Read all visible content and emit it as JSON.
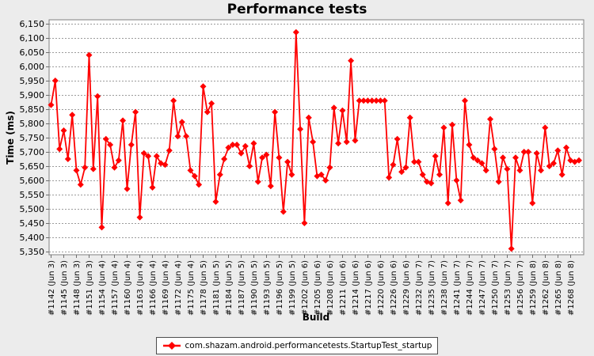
{
  "title": "Performance tests",
  "colors": {
    "page_background": "#ececec",
    "plot_background": "#ffffff",
    "plot_border": "#7f7f7f",
    "gridline": "#9b9b9b",
    "tick": "#6e6e6e",
    "text": "#000000",
    "series_line": "#ff0000"
  },
  "legend": {
    "series_label": "com.shazam.android.performancetests.StartupTest_startup"
  },
  "chart_data": {
    "type": "line",
    "title": "Performance tests",
    "xlabel": "Build",
    "ylabel": "Time (ms)",
    "ylim": [
      5350,
      6150
    ],
    "y_tick_step": 50,
    "grid": "horizontal-dashed",
    "legend_position": "bottom",
    "marker": "diamond",
    "y_tick_labels": [
      "6,150",
      "6,100",
      "6,050",
      "6,000",
      "5,950",
      "5,900",
      "5,850",
      "5,800",
      "5,750",
      "5,700",
      "5,650",
      "5,600",
      "5,550",
      "5,500",
      "5,450",
      "5,400",
      "5,350"
    ],
    "x_tick_labels": [
      "#1142 (Jun 3)",
      "#1145 (Jun 3)",
      "#1148 (Jun 3)",
      "#1151 (Jun 3)",
      "#1154 (Jun 4)",
      "#1157 (Jun 4)",
      "#1160 (Jun 4)",
      "#1163 (Jun 4)",
      "#1166 (Jun 4)",
      "#1169 (Jun 4)",
      "#1172 (Jun 4)",
      "#1175 (Jun 4)",
      "#1178 (Jun 5)",
      "#1181 (Jun 5)",
      "#1184 (Jun 5)",
      "#1187 (Jun 5)",
      "#1190 (Jun 5)",
      "#1193 (Jun 5)",
      "#1196 (Jun 5)",
      "#1199 (Jun 5)",
      "#1202 (Jun 6)",
      "#1205 (Jun 6)",
      "#1208 (Jun 6)",
      "#1211 (Jun 6)",
      "#1214 (Jun 6)",
      "#1217 (Jun 6)",
      "#1220 (Jun 6)",
      "#1226 (Jun 6)",
      "#1229 (Jun 6)",
      "#1232 (Jun 7)",
      "#1235 (Jun 7)",
      "#1238 (Jun 7)",
      "#1241 (Jun 7)",
      "#1244 (Jun 7)",
      "#1247 (Jun 7)",
      "#1250 (Jun 7)",
      "#1253 (Jun 7)",
      "#1256 (Jun 7)",
      "#1259 (Jun 8)",
      "#1262 (Jun 8)",
      "#1265 (Jun 8)",
      "#1268 (Jun 8)"
    ],
    "label_every": 3,
    "series": [
      {
        "name": "com.shazam.android.performancetests.StartupTest_startup",
        "color": "#ff0000",
        "values": [
          5865,
          5950,
          5710,
          5775,
          5675,
          5830,
          5635,
          5585,
          5645,
          6040,
          5640,
          5895,
          5435,
          5745,
          5725,
          5645,
          5670,
          5810,
          5570,
          5725,
          5840,
          5470,
          5695,
          5685,
          5575,
          5685,
          5660,
          5655,
          5705,
          5880,
          5755,
          5805,
          5755,
          5635,
          5615,
          5585,
          5930,
          5840,
          5870,
          5525,
          5620,
          5675,
          5715,
          5725,
          5725,
          5695,
          5720,
          5650,
          5730,
          5595,
          5680,
          5690,
          5580,
          5840,
          5680,
          5490,
          5665,
          5620,
          6120,
          5780,
          5450,
          5820,
          5735,
          5615,
          5620,
          5600,
          5645,
          5855,
          5730,
          5845,
          5735,
          6020,
          5740,
          5880,
          5880,
          5880,
          5880,
          5880,
          5880,
          5880,
          5610,
          5655,
          5745,
          5630,
          5645,
          5820,
          5665,
          5665,
          5620,
          5595,
          5590,
          5685,
          5620,
          5785,
          5520,
          5795,
          5600,
          5530,
          5880,
          5725,
          5680,
          5670,
          5660,
          5635,
          5815,
          5710,
          5595,
          5680,
          5640,
          5360,
          5680,
          5635,
          5700,
          5700,
          5520,
          5695,
          5635,
          5785,
          5650,
          5660,
          5705,
          5620,
          5715,
          5670,
          5665,
          5670
        ]
      }
    ]
  }
}
